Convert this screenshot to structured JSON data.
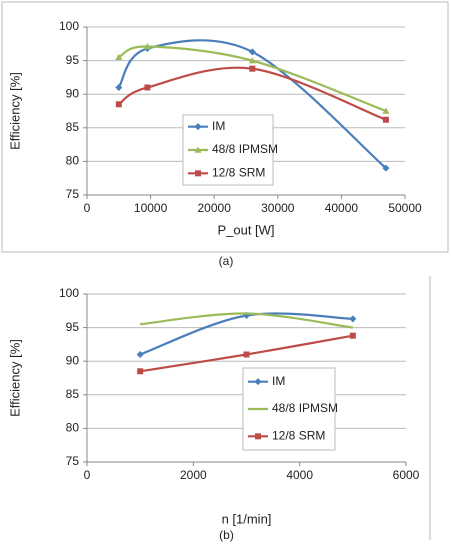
{
  "chart_data": [
    {
      "type": "line",
      "caption": "(a)",
      "x_label": "P_out [W]",
      "y_label": "Efficiency [%]",
      "xlim": [
        0,
        50000
      ],
      "xticks": [
        0,
        10000,
        20000,
        30000,
        40000,
        50000
      ],
      "ylim": [
        75,
        100
      ],
      "yticks": [
        75,
        80,
        85,
        90,
        95,
        100
      ],
      "grid": true,
      "legend": "center",
      "series": [
        {
          "name": "IM",
          "color": "#4a7ebb",
          "marker": "diamond",
          "x": [
            5000,
            9500,
            26000,
            47000
          ],
          "values": [
            91,
            96.8,
            96.3,
            79
          ]
        },
        {
          "name": "48/8 IPMSM",
          "color": "#9bbb59",
          "marker": "triangle",
          "x": [
            5000,
            9500,
            26000,
            47000
          ],
          "values": [
            95.5,
            97.1,
            95,
            87.5
          ]
        },
        {
          "name": "12/8 SRM",
          "color": "#be4b48",
          "marker": "square",
          "x": [
            5000,
            9500,
            26000,
            47000
          ],
          "values": [
            88.5,
            91,
            93.8,
            86.2
          ]
        }
      ]
    },
    {
      "type": "line",
      "caption": "(b)",
      "x_label": "n [1/min]",
      "y_label": "Efficiency [%]",
      "xlim": [
        0,
        6000
      ],
      "xticks": [
        0,
        2000,
        4000,
        6000
      ],
      "ylim": [
        75,
        100
      ],
      "yticks": [
        75,
        80,
        85,
        90,
        95,
        100
      ],
      "grid": true,
      "legend": "center",
      "series": [
        {
          "name": "IM",
          "color": "#4a7ebb",
          "marker": "diamond",
          "x": [
            1000,
            3000,
            5000
          ],
          "values": [
            91,
            96.8,
            96.3
          ]
        },
        {
          "name": "48/8 IPMSM",
          "color": "#9bbb59",
          "marker": "none",
          "x": [
            1000,
            3000,
            5000
          ],
          "values": [
            95.5,
            97.1,
            95
          ]
        },
        {
          "name": "12/8 SRM",
          "color": "#be4b48",
          "marker": "square",
          "x": [
            1000,
            3000,
            5000
          ],
          "values": [
            88.5,
            91,
            93.8
          ]
        }
      ]
    }
  ]
}
